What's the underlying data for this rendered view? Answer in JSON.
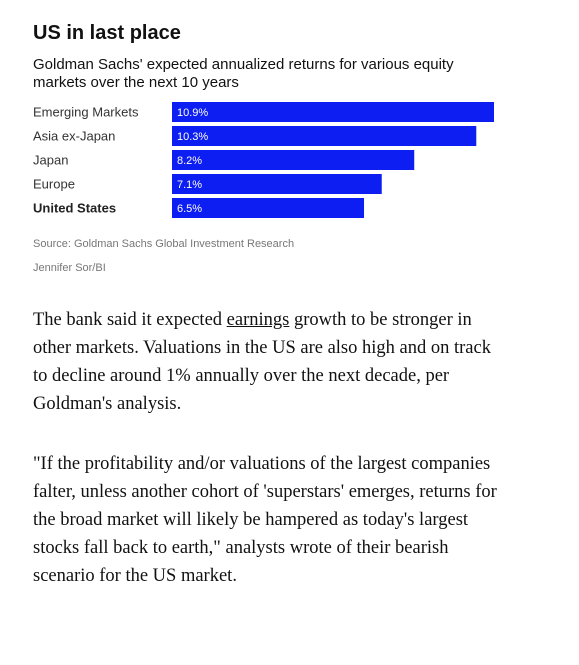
{
  "chart_data": {
    "type": "barh",
    "title": "US in last place",
    "subtitle": "Goldman Sachs' expected annualized returns for various equity markets over the next 10 years",
    "categories": [
      "Emerging Markets",
      "Asia ex-Japan",
      "Japan",
      "Europe",
      "United States"
    ],
    "values": [
      10.9,
      10.3,
      8.2,
      7.1,
      6.5
    ],
    "value_labels": [
      "10.9%",
      "10.3%",
      "8.2%",
      "7.1%",
      "6.5%"
    ],
    "color": "#0c1ef2",
    "source": "Source: Goldman Sachs Global Investment Research",
    "credit": "Jennifer Sor/BI"
  },
  "article": {
    "paragraphs": [
      [
        "The bank said it expected ",
        "earnings",
        " growth to be stronger in other markets. Valuations in the US are also high and on track to decline around 1% annually over the next decade, per Goldman's analysis."
      ],
      [
        "\"If the profitability and/or valuations of the largest companies falter, unless another cohort of 'superstars' emerges, returns for the broad market will likely be hampered as today's largest stocks fall back to earth,\" analysts wrote of their bearish scenario for the US market."
      ]
    ]
  }
}
